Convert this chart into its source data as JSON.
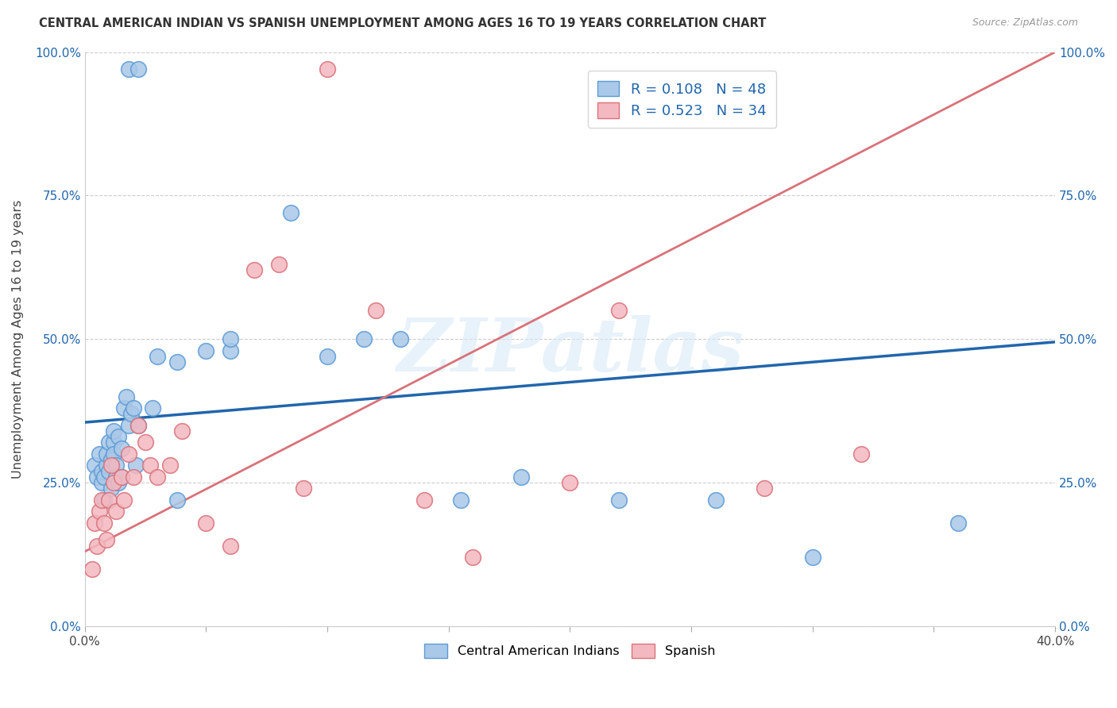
{
  "title": "CENTRAL AMERICAN INDIAN VS SPANISH UNEMPLOYMENT AMONG AGES 16 TO 19 YEARS CORRELATION CHART",
  "source": "Source: ZipAtlas.com",
  "ylabel": "Unemployment Among Ages 16 to 19 years",
  "xlim": [
    0.0,
    0.4
  ],
  "ylim": [
    0.0,
    1.0
  ],
  "ytick_vals": [
    0.0,
    0.25,
    0.5,
    0.75,
    1.0
  ],
  "blue_R": 0.108,
  "blue_N": 48,
  "pink_R": 0.523,
  "pink_N": 34,
  "blue_color": "#aac8e8",
  "pink_color": "#f4b8c0",
  "blue_edge_color": "#5b9bd5",
  "pink_edge_color": "#d9727a",
  "blue_line_color": "#2166ac",
  "pink_line_color": "#d9727a",
  "legend_label_blue": "Central American Indians",
  "legend_label_pink": "Spanish",
  "watermark": "ZIPatlas",
  "blue_line_x0": 0.0,
  "blue_line_y0": 0.355,
  "blue_line_x1": 0.4,
  "blue_line_y1": 0.495,
  "pink_line_x0": 0.0,
  "pink_line_y0": 0.13,
  "pink_line_x1": 0.4,
  "pink_line_y1": 1.0,
  "blue_scatter_x": [
    0.018,
    0.022,
    0.004,
    0.005,
    0.006,
    0.007,
    0.007,
    0.008,
    0.008,
    0.009,
    0.009,
    0.01,
    0.01,
    0.011,
    0.011,
    0.012,
    0.012,
    0.012,
    0.013,
    0.013,
    0.014,
    0.014,
    0.015,
    0.015,
    0.016,
    0.017,
    0.018,
    0.019,
    0.02,
    0.021,
    0.022,
    0.028,
    0.03,
    0.038,
    0.05,
    0.06,
    0.085,
    0.1,
    0.115,
    0.13,
    0.155,
    0.18,
    0.22,
    0.26,
    0.3,
    0.36,
    0.038,
    0.06
  ],
  "blue_scatter_y": [
    0.97,
    0.97,
    0.28,
    0.26,
    0.3,
    0.25,
    0.27,
    0.26,
    0.22,
    0.28,
    0.3,
    0.27,
    0.32,
    0.29,
    0.24,
    0.32,
    0.3,
    0.34,
    0.28,
    0.26,
    0.25,
    0.33,
    0.31,
    0.26,
    0.38,
    0.4,
    0.35,
    0.37,
    0.38,
    0.28,
    0.35,
    0.38,
    0.47,
    0.46,
    0.48,
    0.48,
    0.72,
    0.47,
    0.5,
    0.5,
    0.22,
    0.26,
    0.22,
    0.22,
    0.12,
    0.18,
    0.22,
    0.5
  ],
  "pink_scatter_x": [
    0.003,
    0.004,
    0.005,
    0.006,
    0.007,
    0.008,
    0.009,
    0.01,
    0.011,
    0.012,
    0.013,
    0.015,
    0.016,
    0.018,
    0.02,
    0.022,
    0.025,
    0.027,
    0.03,
    0.035,
    0.04,
    0.05,
    0.06,
    0.07,
    0.08,
    0.09,
    0.1,
    0.12,
    0.14,
    0.16,
    0.2,
    0.22,
    0.28,
    0.32
  ],
  "pink_scatter_y": [
    0.1,
    0.18,
    0.14,
    0.2,
    0.22,
    0.18,
    0.15,
    0.22,
    0.28,
    0.25,
    0.2,
    0.26,
    0.22,
    0.3,
    0.26,
    0.35,
    0.32,
    0.28,
    0.26,
    0.28,
    0.34,
    0.18,
    0.14,
    0.62,
    0.63,
    0.24,
    0.97,
    0.55,
    0.22,
    0.12,
    0.25,
    0.55,
    0.24,
    0.3
  ]
}
